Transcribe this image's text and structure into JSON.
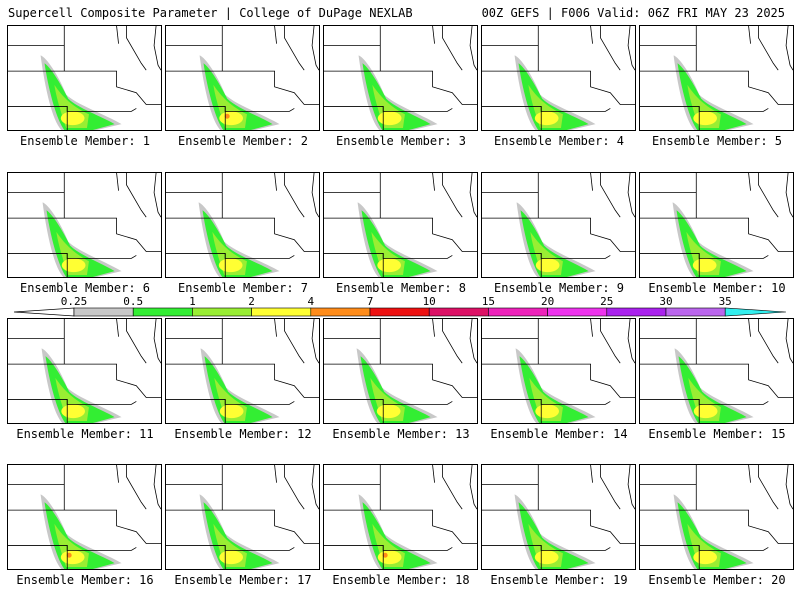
{
  "header": {
    "left": "Supercell Composite Parameter | College of DuPage NEXLAB",
    "right": "00Z GEFS | F006 Valid: 06Z FRI MAY 23 2025"
  },
  "members": [
    {
      "label": "Ensemble Member: 1"
    },
    {
      "label": "Ensemble Member: 2"
    },
    {
      "label": "Ensemble Member: 3"
    },
    {
      "label": "Ensemble Member: 4"
    },
    {
      "label": "Ensemble Member: 5"
    },
    {
      "label": "Ensemble Member: 6"
    },
    {
      "label": "Ensemble Member: 7"
    },
    {
      "label": "Ensemble Member: 8"
    },
    {
      "label": "Ensemble Member: 9"
    },
    {
      "label": "Ensemble Member: 10"
    },
    {
      "label": "Ensemble Member: 11"
    },
    {
      "label": "Ensemble Member: 12"
    },
    {
      "label": "Ensemble Member: 13"
    },
    {
      "label": "Ensemble Member: 14"
    },
    {
      "label": "Ensemble Member: 15"
    },
    {
      "label": "Ensemble Member: 16"
    },
    {
      "label": "Ensemble Member: 17"
    },
    {
      "label": "Ensemble Member: 18"
    },
    {
      "label": "Ensemble Member: 19"
    },
    {
      "label": "Ensemble Member: 20"
    }
  ],
  "colorbar": {
    "thresholds": [
      "0.25",
      "0.5",
      "1",
      "2",
      "4",
      "7",
      "10",
      "15",
      "20",
      "25",
      "30",
      "35"
    ],
    "colors": [
      "#c8c8c8",
      "#33ee33",
      "#99ee33",
      "#ffff33",
      "#ff8c1a",
      "#ee1111",
      "#dd1166",
      "#ee22bb",
      "#ee33ee",
      "#aa22ee",
      "#bb66ee",
      "#33eeee"
    ]
  }
}
